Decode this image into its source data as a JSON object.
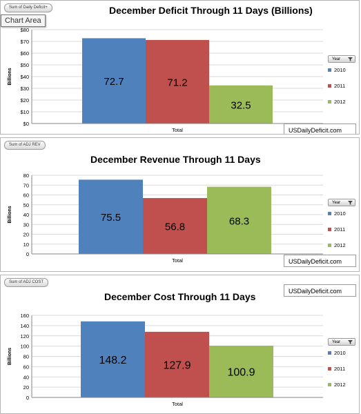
{
  "colors": {
    "y2010": "#4f81bd",
    "y2011": "#c0504d",
    "y2012": "#9bbb59",
    "grid": "#d9d9d9",
    "axis": "#868686"
  },
  "tooltip": "Chart Area",
  "chart_data": [
    {
      "type": "bar",
      "field_button": "Sum of Daily Deficit+",
      "title": "December Deficit Through 11 Days (Billions)",
      "watermark": "USDailyDeficit.com",
      "ylabel": "Billions",
      "xlabel": "Total",
      "categories": [
        "Total"
      ],
      "ylim": [
        0,
        80
      ],
      "yticks": [
        "$0",
        "$10",
        "$20",
        "$30",
        "$40",
        "$50",
        "$60",
        "$70",
        "$80"
      ],
      "legend": {
        "button": "Year",
        "position": "right"
      },
      "series": [
        {
          "name": "2010",
          "values": [
            72.7
          ],
          "label": "72.7"
        },
        {
          "name": "2011",
          "values": [
            71.2
          ],
          "label": "71.2"
        },
        {
          "name": "2012",
          "values": [
            32.5
          ],
          "label": "32.5"
        }
      ]
    },
    {
      "type": "bar",
      "field_button": "Sum of ADJ REV",
      "title": "December Revenue Through 11 Days",
      "watermark": "USDailyDeficit.com",
      "ylabel": "Billions",
      "xlabel": "Total",
      "categories": [
        "Total"
      ],
      "ylim": [
        0,
        80
      ],
      "yticks": [
        "0",
        "10",
        "20",
        "30",
        "40",
        "50",
        "60",
        "70",
        "80"
      ],
      "legend": {
        "button": "Year",
        "position": "right"
      },
      "series": [
        {
          "name": "2010",
          "values": [
            75.5
          ],
          "label": "75.5"
        },
        {
          "name": "2011",
          "values": [
            56.8
          ],
          "label": "56.8"
        },
        {
          "name": "2012",
          "values": [
            68.3
          ],
          "label": "68.3"
        }
      ]
    },
    {
      "type": "bar",
      "field_button": "Sum of ADJ COST",
      "title": "December Cost Through 11 Days",
      "watermark": "USDailyDeficit.com",
      "ylabel": "Billions",
      "xlabel": "Total",
      "categories": [
        "Total"
      ],
      "ylim": [
        0,
        160
      ],
      "yticks": [
        "0",
        "20",
        "40",
        "60",
        "80",
        "100",
        "120",
        "140",
        "160"
      ],
      "legend": {
        "button": "Year",
        "position": "right"
      },
      "series": [
        {
          "name": "2010",
          "values": [
            148.2
          ],
          "label": "148.2"
        },
        {
          "name": "2011",
          "values": [
            127.9
          ],
          "label": "127.9"
        },
        {
          "name": "2012",
          "values": [
            100.9
          ],
          "label": "100.9"
        }
      ]
    }
  ]
}
